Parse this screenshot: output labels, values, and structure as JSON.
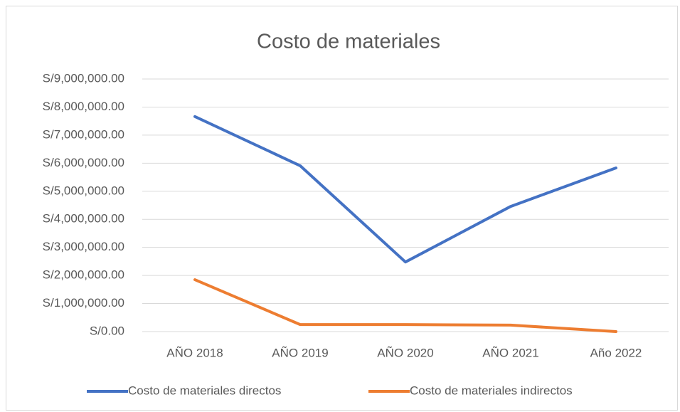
{
  "chart_data": {
    "type": "line",
    "title": "Costo de materiales",
    "categories": [
      "AÑO 2018",
      "AÑO 2019",
      "AÑO 2020",
      "AÑO 2021",
      "Año 2022"
    ],
    "series": [
      {
        "name": "Costo de materiales directos",
        "color": "#4472c4",
        "values": [
          7660000,
          5910000,
          2480000,
          4460000,
          5830000
        ]
      },
      {
        "name": "Costo de materiales indirectos",
        "color": "#ed7d31",
        "values": [
          1850000,
          250000,
          250000,
          230000,
          0
        ]
      }
    ],
    "ylim": [
      0,
      9000000
    ],
    "yticks": [
      {
        "value": 0,
        "label": "S/0.00"
      },
      {
        "value": 1000000,
        "label": "S/1,000,000.00"
      },
      {
        "value": 2000000,
        "label": "S/2,000,000.00"
      },
      {
        "value": 3000000,
        "label": "S/3,000,000.00"
      },
      {
        "value": 4000000,
        "label": "S/4,000,000.00"
      },
      {
        "value": 5000000,
        "label": "S/5,000,000.00"
      },
      {
        "value": 6000000,
        "label": "S/6,000,000.00"
      },
      {
        "value": 7000000,
        "label": "S/7,000,000.00"
      },
      {
        "value": 8000000,
        "label": "S/8,000,000.00"
      },
      {
        "value": 9000000,
        "label": "S/9,000,000.00"
      }
    ],
    "grid": true,
    "legend": "bottom"
  }
}
